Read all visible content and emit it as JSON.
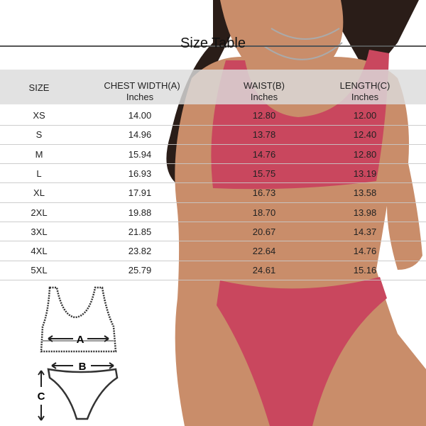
{
  "title": "Size Table",
  "columns": [
    {
      "label": "SIZE",
      "unit": ""
    },
    {
      "label": "CHEST WIDTH(A)",
      "unit": "Inches"
    },
    {
      "label": "WAIST(B)",
      "unit": "Inches"
    },
    {
      "label": "LENGTH(C)",
      "unit": "Inches"
    }
  ],
  "rows": [
    [
      "XS",
      "14.00",
      "12.80",
      "12.00"
    ],
    [
      "S",
      "14.96",
      "13.78",
      "12.40"
    ],
    [
      "M",
      "15.94",
      "14.76",
      "12.80"
    ],
    [
      "L",
      "16.93",
      "15.75",
      "13.19"
    ],
    [
      "XL",
      "17.91",
      "16.73",
      "13.58"
    ],
    [
      "2XL",
      "19.88",
      "18.70",
      "13.98"
    ],
    [
      "3XL",
      "21.85",
      "20.67",
      "14.37"
    ],
    [
      "4XL",
      "23.82",
      "22.64",
      "14.76"
    ],
    [
      "5XL",
      "25.79",
      "24.61",
      "15.16"
    ]
  ],
  "diagram": {
    "labels": [
      "A",
      "B",
      "C"
    ]
  },
  "colors": {
    "bikini": "#c9475e",
    "skin": "#c98d6a",
    "hair": "#2a1d18",
    "header_band": "#dcdcdc"
  }
}
